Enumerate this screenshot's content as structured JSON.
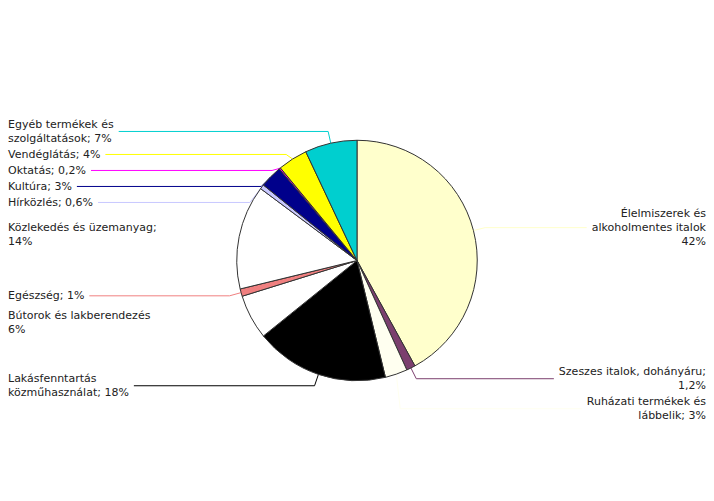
{
  "chart_data": {
    "type": "pie",
    "categories": [
      "Élelmiszerek és\nalkoholmentes italok\n42%",
      "Szeszes italok, dohányáru;\n1,2%",
      "Ruházati termékek és\nlábbelik; 3%",
      "Lakásfenntartás\nközműhasználat; 18%",
      "Bútorok és lakberendezés\n6%",
      "Egészség; 1%",
      "Közlekedés és üzemanyag;\n14%",
      "Hírközlés; 0,6%",
      "Kultúra; 3%",
      "Oktatás; 0,2%",
      "Vendéglátás; 4%",
      "Egyéb termékek és\nszolgáltatások; 7%"
    ],
    "values": [
      42,
      1.2,
      3,
      18,
      6,
      1,
      14,
      0.6,
      3,
      0.2,
      4,
      7
    ],
    "colors": [
      "#FFFFCC",
      "#7B3F6E",
      "#FFFFF0",
      "#000000",
      "#FFFFFF",
      "#F08080",
      "#FFFFFF",
      "#C8C8FF",
      "#00008B",
      "#FF00FF",
      "#FFFF00",
      "#00CFCF"
    ]
  }
}
